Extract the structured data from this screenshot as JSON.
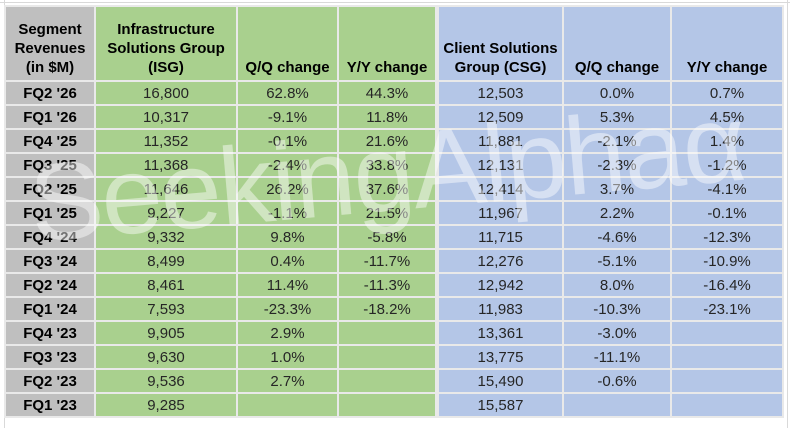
{
  "title": "Segment Revenues (in $M)",
  "watermark": {
    "text": "SeekingAlpha",
    "symbol": "α"
  },
  "colors": {
    "isg_green": "#a9d08e",
    "csg_blue": "#b4c6e7",
    "label_gray": "#bfbfbf",
    "gridline": "#e9e9e9",
    "text_dark": "#262626"
  },
  "chart_data": {
    "type": "table",
    "title": "Segment Revenues (in $M)",
    "corner_header": [
      "Segment",
      "Revenues",
      "(in $M)"
    ],
    "isg_header": [
      "Infrastructure",
      "Solutions Group",
      "(ISG)"
    ],
    "csg_header": [
      "Client Solutions",
      "Group (CSG)"
    ],
    "qq_header": "Q/Q change",
    "yy_header": "Y/Y change",
    "rows": [
      {
        "period": "FQ2 '26",
        "isg": "16,800",
        "isg_qq": "62.8%",
        "isg_yy": "44.3%",
        "csg": "12,503",
        "csg_qq": "0.0%",
        "csg_yy": "0.7%"
      },
      {
        "period": "FQ1 '26",
        "isg": "10,317",
        "isg_qq": "-9.1%",
        "isg_yy": "11.8%",
        "csg": "12,509",
        "csg_qq": "5.3%",
        "csg_yy": "4.5%"
      },
      {
        "period": "FQ4 '25",
        "isg": "11,352",
        "isg_qq": "-0.1%",
        "isg_yy": "21.6%",
        "csg": "11,881",
        "csg_qq": "-2.1%",
        "csg_yy": "1.4%"
      },
      {
        "period": "FQ3 '25",
        "isg": "11,368",
        "isg_qq": "-2.4%",
        "isg_yy": "33.8%",
        "csg": "12,131",
        "csg_qq": "-2.3%",
        "csg_yy": "-1.2%"
      },
      {
        "period": "FQ2 '25",
        "isg": "11,646",
        "isg_qq": "26.2%",
        "isg_yy": "37.6%",
        "csg": "12,414",
        "csg_qq": "3.7%",
        "csg_yy": "-4.1%"
      },
      {
        "period": "FQ1 '25",
        "isg": "9,227",
        "isg_qq": "-1.1%",
        "isg_yy": "21.5%",
        "csg": "11,967",
        "csg_qq": "2.2%",
        "csg_yy": "-0.1%"
      },
      {
        "period": "FQ4 '24",
        "isg": "9,332",
        "isg_qq": "9.8%",
        "isg_yy": "-5.8%",
        "csg": "11,715",
        "csg_qq": "-4.6%",
        "csg_yy": "-12.3%"
      },
      {
        "period": "FQ3 '24",
        "isg": "8,499",
        "isg_qq": "0.4%",
        "isg_yy": "-11.7%",
        "csg": "12,276",
        "csg_qq": "-5.1%",
        "csg_yy": "-10.9%"
      },
      {
        "period": "FQ2 '24",
        "isg": "8,461",
        "isg_qq": "11.4%",
        "isg_yy": "-11.3%",
        "csg": "12,942",
        "csg_qq": "8.0%",
        "csg_yy": "-16.4%"
      },
      {
        "period": "FQ1 '24",
        "isg": "7,593",
        "isg_qq": "-23.3%",
        "isg_yy": "-18.2%",
        "csg": "11,983",
        "csg_qq": "-10.3%",
        "csg_yy": "-23.1%"
      },
      {
        "period": "FQ4 '23",
        "isg": "9,905",
        "isg_qq": "2.9%",
        "isg_yy": "",
        "csg": "13,361",
        "csg_qq": "-3.0%",
        "csg_yy": ""
      },
      {
        "period": "FQ3 '23",
        "isg": "9,630",
        "isg_qq": "1.0%",
        "isg_yy": "",
        "csg": "13,775",
        "csg_qq": "-11.1%",
        "csg_yy": ""
      },
      {
        "period": "FQ2 '23",
        "isg": "9,536",
        "isg_qq": "2.7%",
        "isg_yy": "",
        "csg": "15,490",
        "csg_qq": "-0.6%",
        "csg_yy": ""
      },
      {
        "period": "FQ1 '23",
        "isg": "9,285",
        "isg_qq": "",
        "isg_yy": "",
        "csg": "15,587",
        "csg_qq": "",
        "csg_yy": ""
      }
    ]
  }
}
